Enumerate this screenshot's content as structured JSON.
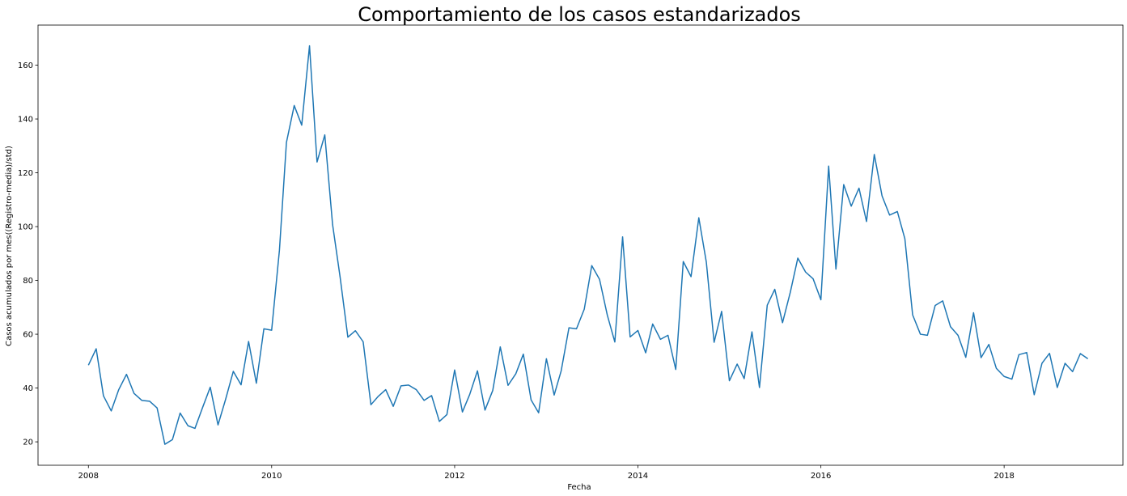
{
  "chart_data": {
    "type": "line",
    "title": "Comportamiento de los casos estandarizados",
    "xlabel": "Fecha",
    "ylabel": "Casos acumulados por mes((Registro-media)/std)",
    "xlim": [
      "2007-06-14",
      "2019-04-20"
    ],
    "ylim": [
      11.3,
      174.9
    ],
    "grid": false,
    "x_ticks": [
      "2008",
      "2010",
      "2012",
      "2014",
      "2016",
      "2018"
    ],
    "y_ticks": [
      20,
      40,
      60,
      80,
      100,
      120,
      140,
      160
    ],
    "line_color": "#1f77b4",
    "series": [
      {
        "x_start": "2008-01",
        "x_step": "1 month",
        "values": [
          48.5,
          54.6,
          37.1,
          31.5,
          39.4,
          45.1,
          38.0,
          35.4,
          35.1,
          32.6,
          19.1,
          20.8,
          30.7,
          26.0,
          25.0,
          32.9,
          40.3,
          26.3,
          35.7,
          46.2,
          41.2,
          57.3,
          41.8,
          62.0,
          61.5,
          91.2,
          131.3,
          145.0,
          137.7,
          167.2,
          124.0,
          134.1,
          100.8,
          81.3,
          58.9,
          61.3,
          57.2,
          33.8,
          36.8,
          39.4,
          33.2,
          40.8,
          41.1,
          39.4,
          35.4,
          37.2,
          27.6,
          30.1,
          46.7,
          31.1,
          37.6,
          46.4,
          31.8,
          39.1,
          55.3,
          41.0,
          45.3,
          52.6,
          35.6,
          30.8,
          50.9,
          37.4,
          46.4,
          62.4,
          62.0,
          69.3,
          85.5,
          80.4,
          67.1,
          57.1,
          96.2,
          59.0,
          61.4,
          53.1,
          63.8,
          58.1,
          59.6,
          46.9,
          87.0,
          81.4,
          103.3,
          86.8,
          57.0,
          68.5,
          42.7,
          48.9,
          43.5,
          60.9,
          40.2,
          70.8,
          76.7,
          64.3,
          75.6,
          88.3,
          83.1,
          80.6,
          72.8,
          122.5,
          84.2,
          115.6,
          107.6,
          114.3,
          101.9,
          126.8,
          111.4,
          104.3,
          105.6,
          95.5,
          67.2,
          60.0,
          59.6,
          70.7,
          72.4,
          62.8,
          59.6,
          51.4,
          68.0,
          51.3,
          56.2,
          47.3,
          44.3,
          43.3,
          52.4,
          53.2,
          37.5,
          49.2,
          52.9,
          40.2,
          49.2,
          46.1,
          52.8,
          50.9
        ]
      }
    ]
  }
}
